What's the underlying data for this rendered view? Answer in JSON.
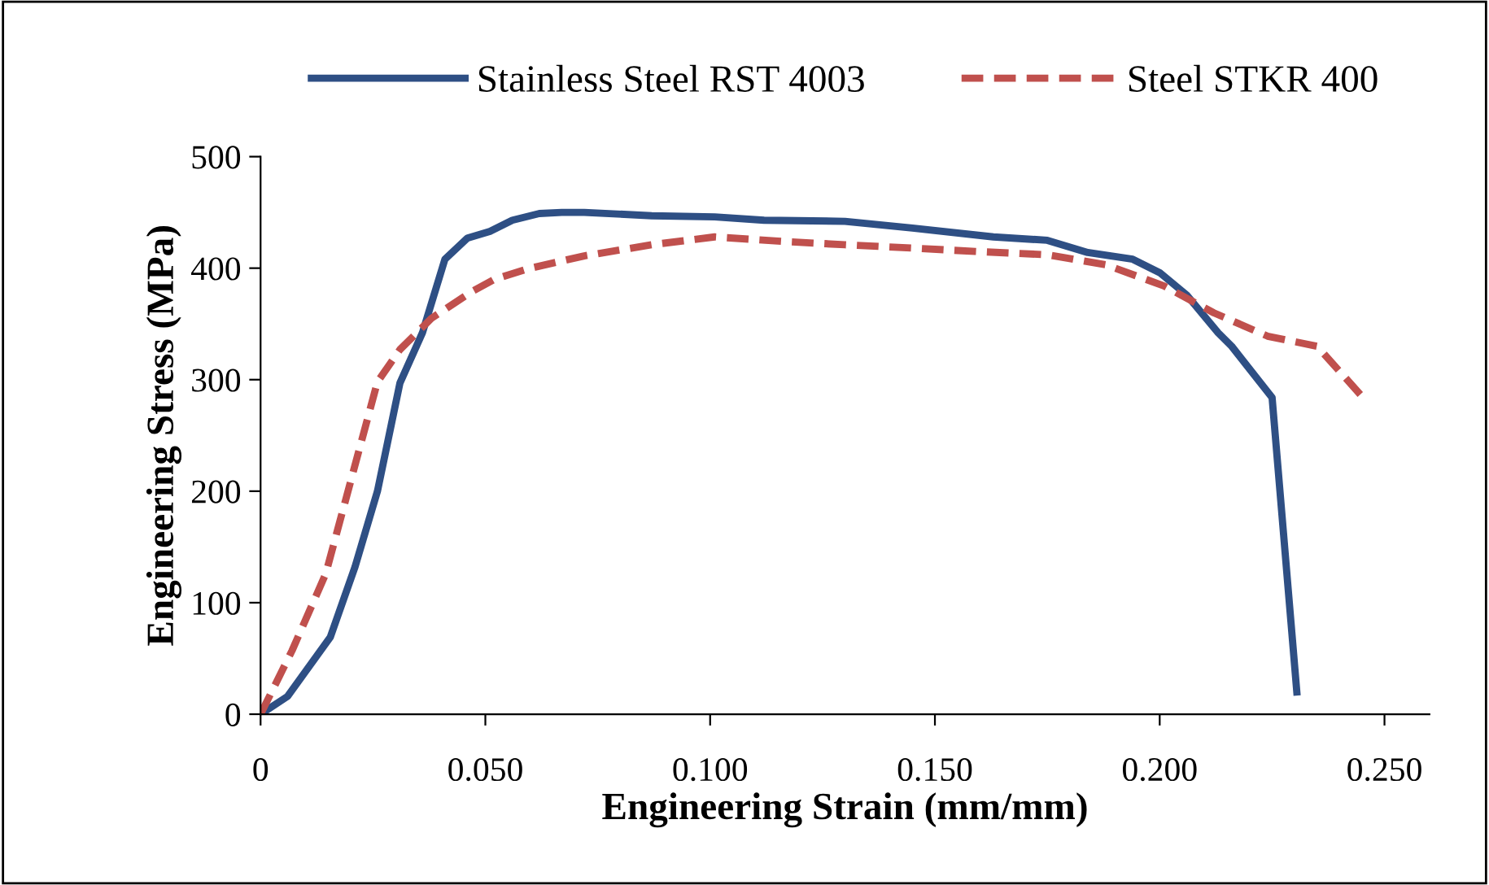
{
  "chart_data": {
    "type": "line",
    "xlabel": "Engineering Strain (mm/mm)",
    "ylabel": "Engineering Stress (MPa)",
    "xlim": [
      0,
      0.26
    ],
    "ylim": [
      0,
      500
    ],
    "xticks": [
      {
        "value": 0,
        "label": "0"
      },
      {
        "value": 0.05,
        "label": "0.050"
      },
      {
        "value": 0.1,
        "label": "0.100"
      },
      {
        "value": 0.15,
        "label": "0.150"
      },
      {
        "value": 0.2,
        "label": "0.200"
      },
      {
        "value": 0.25,
        "label": "0.250"
      }
    ],
    "yticks": [
      0,
      100,
      200,
      300,
      400,
      500
    ],
    "grid": false,
    "legend": "top",
    "marker": "none",
    "series": [
      {
        "name": "Stainless Steel RST 4003",
        "color": "#2e4f84",
        "line_style": "solid",
        "x": [
          0,
          0.006,
          0.0155,
          0.021,
          0.026,
          0.031,
          0.036,
          0.041,
          0.046,
          0.051,
          0.056,
          0.062,
          0.067,
          0.072,
          0.087,
          0.101,
          0.112,
          0.13,
          0.145,
          0.163,
          0.175,
          0.184,
          0.194,
          0.2,
          0.206,
          0.213,
          0.216,
          0.225,
          0.2305
        ],
        "values": [
          0,
          16,
          69,
          132,
          200,
          297,
          342,
          408,
          427,
          433,
          443,
          449,
          450,
          450,
          447,
          446,
          443,
          442,
          436,
          428,
          425,
          414,
          408,
          396,
          376,
          342,
          330,
          284,
          20
        ]
      },
      {
        "name": "Steel STKR 400",
        "color": "#c0504d",
        "line_style": "dashed",
        "x": [
          0,
          0.007,
          0.0145,
          0.026,
          0.031,
          0.038,
          0.047,
          0.052,
          0.06,
          0.072,
          0.087,
          0.101,
          0.116,
          0.13,
          0.145,
          0.159,
          0.175,
          0.188,
          0.201,
          0.212,
          0.224,
          0.235,
          0.245
        ],
        "values": [
          0,
          57,
          126,
          298,
          327,
          355,
          379,
          390,
          400,
          411,
          421,
          428,
          424,
          421,
          418,
          415,
          412,
          403,
          384,
          360,
          339,
          330,
          285
        ]
      }
    ]
  }
}
